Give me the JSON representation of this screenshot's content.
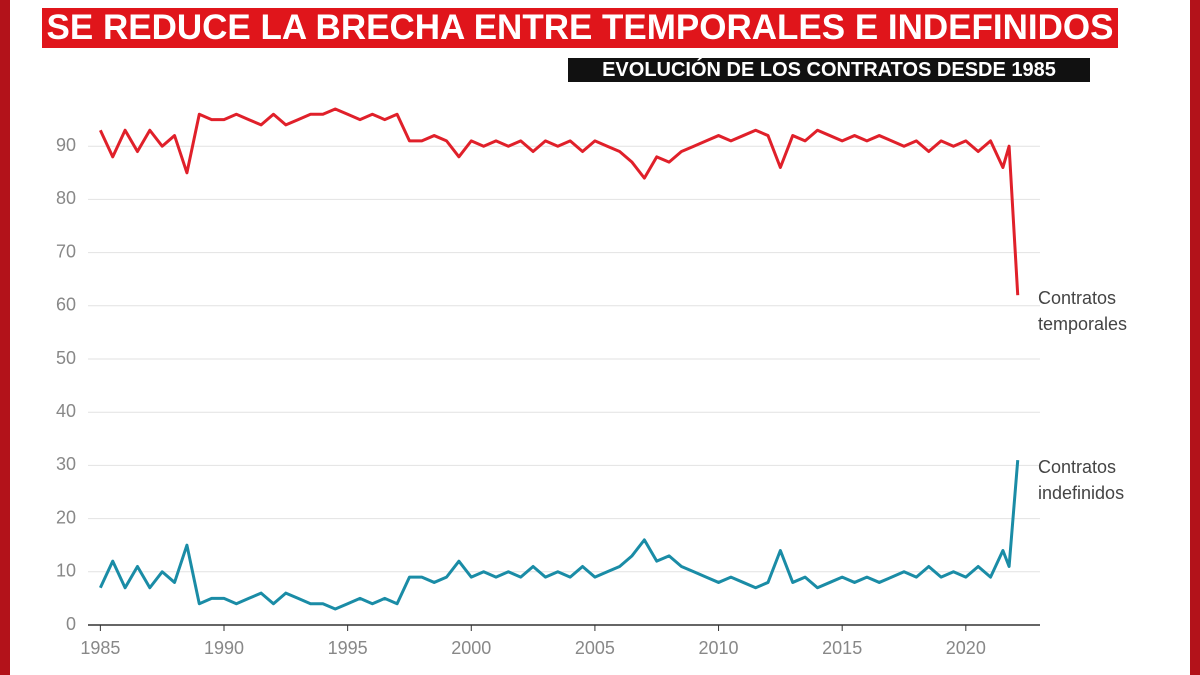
{
  "chart_data": {
    "type": "line",
    "title": "SE REDUCE LA BRECHA ENTRE TEMPORALES E INDEFINIDOS",
    "subtitle": "EVOLUCIÓN DE LOS CONTRATOS DESDE 1985",
    "x": [
      1985,
      1985.5,
      1986,
      1986.5,
      1987,
      1987.5,
      1988,
      1988.5,
      1989,
      1989.5,
      1990,
      1990.5,
      1991,
      1991.5,
      1992,
      1992.5,
      1993,
      1993.5,
      1994,
      1994.5,
      1995,
      1995.5,
      1996,
      1996.5,
      1997,
      1997.5,
      1998,
      1998.5,
      1999,
      1999.5,
      2000,
      2000.5,
      2001,
      2001.5,
      2002,
      2002.5,
      2003,
      2003.5,
      2004,
      2004.5,
      2005,
      2005.5,
      2006,
      2006.5,
      2007,
      2007.5,
      2008,
      2008.5,
      2009,
      2009.5,
      2010,
      2010.5,
      2011,
      2011.5,
      2012,
      2012.5,
      2013,
      2013.5,
      2014,
      2014.5,
      2015,
      2015.5,
      2016,
      2016.5,
      2017,
      2017.5,
      2018,
      2018.5,
      2019,
      2019.5,
      2020,
      2020.5,
      2021,
      2021.5,
      2021.75,
      2022.1
    ],
    "series": [
      {
        "name": "Contratos temporales",
        "color": "#e0202a",
        "values": [
          93,
          88,
          93,
          89,
          93,
          90,
          92,
          85,
          96,
          95,
          95,
          96,
          95,
          94,
          96,
          94,
          95,
          96,
          96,
          97,
          96,
          95,
          96,
          95,
          96,
          91,
          91,
          92,
          91,
          88,
          91,
          90,
          91,
          90,
          91,
          89,
          91,
          90,
          91,
          89,
          91,
          90,
          89,
          87,
          84,
          88,
          87,
          89,
          90,
          91,
          92,
          91,
          92,
          93,
          92,
          86,
          92,
          91,
          93,
          92,
          91,
          92,
          91,
          92,
          91,
          90,
          91,
          89,
          91,
          90,
          91,
          89,
          91,
          86,
          90,
          62
        ]
      },
      {
        "name": "Contratos indefinidos",
        "color": "#1a8ca6",
        "values": [
          7,
          12,
          7,
          11,
          7,
          10,
          8,
          15,
          4,
          5,
          5,
          4,
          5,
          6,
          4,
          6,
          5,
          4,
          4,
          3,
          4,
          5,
          4,
          5,
          4,
          9,
          9,
          8,
          9,
          12,
          9,
          10,
          9,
          10,
          9,
          11,
          9,
          10,
          9,
          11,
          9,
          10,
          11,
          13,
          16,
          12,
          13,
          11,
          10,
          9,
          8,
          9,
          8,
          7,
          8,
          14,
          8,
          9,
          7,
          8,
          9,
          8,
          9,
          8,
          9,
          10,
          9,
          11,
          9,
          10,
          9,
          11,
          9,
          14,
          11,
          31
        ]
      }
    ],
    "xlim": [
      1984.5,
      2023
    ],
    "xticks": [
      1985,
      1990,
      1995,
      2000,
      2005,
      2010,
      2015,
      2020
    ],
    "ylim": [
      0,
      100
    ],
    "yticks": [
      0,
      10,
      20,
      30,
      40,
      50,
      60,
      70,
      80,
      90
    ],
    "grid": true
  }
}
